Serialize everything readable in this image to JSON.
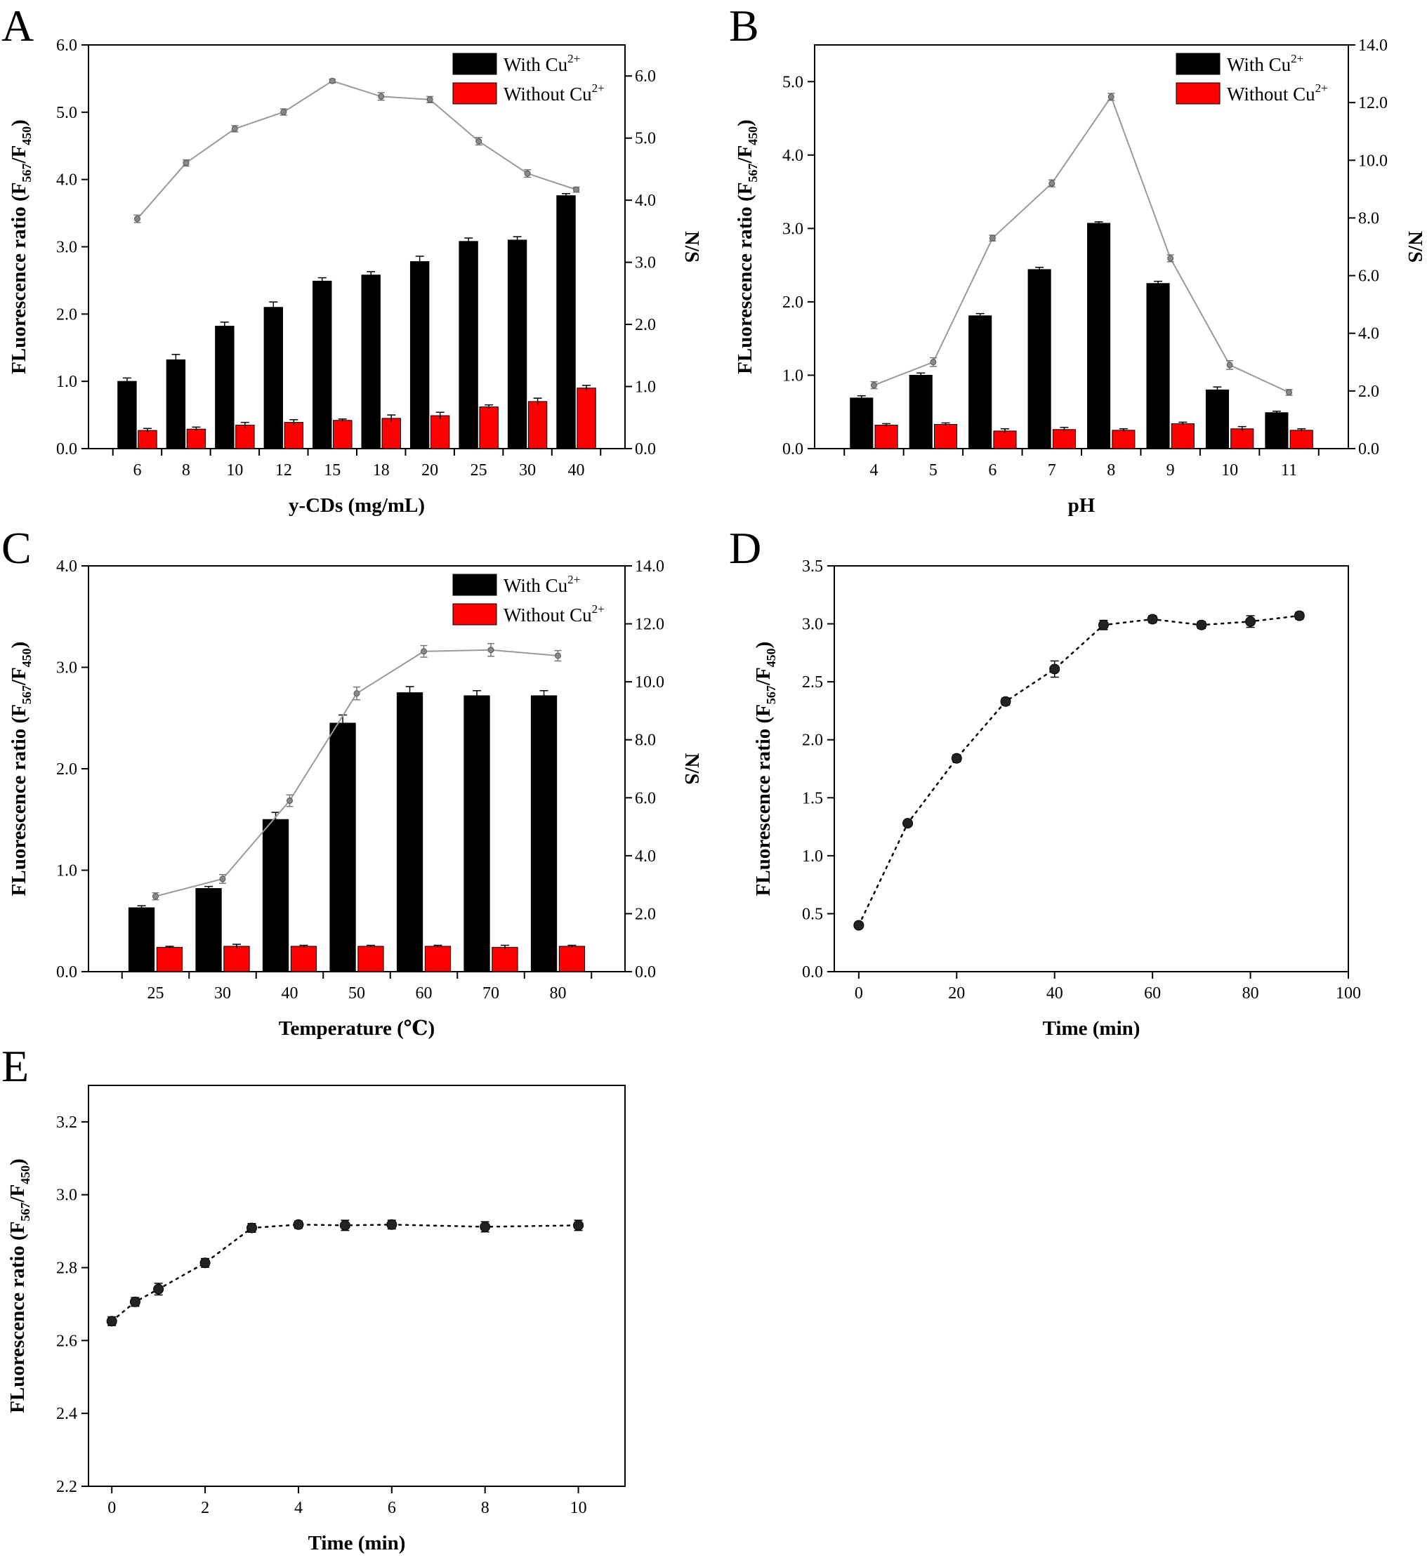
{
  "panels": [
    {
      "letter": "A",
      "chart_data": {
        "type": "bar",
        "categories": [
          "6",
          "8",
          "10",
          "12",
          "15",
          "18",
          "20",
          "25",
          "30",
          "40"
        ],
        "xlabel": "y-CDs (mg/mL)",
        "ylabel": "FLuorescence ratio (F567/F450)",
        "ylabel_parts": [
          "FLuorescence ratio (F",
          "567",
          "/F",
          "450",
          ")"
        ],
        "y2label": "N/S",
        "ylim": [
          0,
          6.0
        ],
        "yticks": [
          0.0,
          1.0,
          2.0,
          3.0,
          4.0,
          5.0,
          6.0
        ],
        "y2lim": [
          0,
          6.5
        ],
        "y2ticks": [
          0.0,
          1.0,
          2.0,
          3.0,
          4.0,
          5.0,
          6.0
        ],
        "series": [
          {
            "name": "With Cu2+",
            "label_base": "With Cu",
            "label_sup": "2+",
            "color": "#000000",
            "axis": "left",
            "values": [
              1.0,
              1.32,
              1.82,
              2.1,
              2.49,
              2.58,
              2.78,
              3.08,
              3.1,
              3.76
            ],
            "errors": [
              0.05,
              0.08,
              0.06,
              0.08,
              0.05,
              0.05,
              0.08,
              0.05,
              0.05,
              0.03
            ]
          },
          {
            "name": "Without Cu2+",
            "label_base": "Without Cu",
            "label_sup": "2+",
            "color": "#ff0000",
            "axis": "left",
            "values": [
              0.27,
              0.29,
              0.35,
              0.39,
              0.42,
              0.45,
              0.49,
              0.62,
              0.7,
              0.9
            ],
            "errors": [
              0.03,
              0.03,
              0.04,
              0.04,
              0.02,
              0.05,
              0.05,
              0.03,
              0.05,
              0.04
            ]
          },
          {
            "name": "N/S",
            "color": "#999999",
            "axis": "right",
            "type": "line",
            "values": [
              3.7,
              4.6,
              5.15,
              5.42,
              5.92,
              5.67,
              5.62,
              4.95,
              4.43,
              4.17
            ],
            "errors": [
              0.06,
              0.05,
              0.05,
              0.05,
              0.03,
              0.06,
              0.05,
              0.06,
              0.06,
              0.04
            ]
          }
        ],
        "legend": "top-right"
      }
    },
    {
      "letter": "B",
      "chart_data": {
        "type": "bar",
        "categories": [
          "4",
          "5",
          "6",
          "7",
          "8",
          "9",
          "10",
          "11"
        ],
        "xlabel": "pH",
        "ylabel": "FLuorescence ratio (F567/F450)",
        "ylabel_parts": [
          "FLuorescence ratio (F",
          "567",
          "/F",
          "450",
          ")"
        ],
        "y2label": "N/S",
        "ylim": [
          0,
          5.5
        ],
        "yticks": [
          0.0,
          1.0,
          2.0,
          3.0,
          4.0,
          5.0
        ],
        "y2lim": [
          0,
          14.0
        ],
        "y2ticks": [
          0.0,
          2.0,
          4.0,
          6.0,
          8.0,
          10.0,
          12.0,
          14.0
        ],
        "series": [
          {
            "name": "With Cu2+",
            "label_base": "With Cu",
            "label_sup": "2+",
            "color": "#000000",
            "axis": "left",
            "values": [
              0.69,
              1.0,
              1.81,
              2.44,
              3.07,
              2.25,
              0.8,
              0.49
            ],
            "errors": [
              0.03,
              0.03,
              0.03,
              0.03,
              0.02,
              0.03,
              0.04,
              0.02
            ]
          },
          {
            "name": "Without Cu2+",
            "label_base": "Without Cu",
            "label_sup": "2+",
            "color": "#ff0000",
            "axis": "left",
            "values": [
              0.32,
              0.33,
              0.24,
              0.26,
              0.25,
              0.34,
              0.27,
              0.25
            ],
            "errors": [
              0.02,
              0.02,
              0.03,
              0.03,
              0.02,
              0.02,
              0.03,
              0.02
            ]
          },
          {
            "name": "N/S",
            "color": "#999999",
            "axis": "right",
            "type": "line",
            "values": [
              2.2,
              3.0,
              7.3,
              9.2,
              12.2,
              6.6,
              2.9,
              1.95
            ],
            "errors": [
              0.12,
              0.15,
              0.1,
              0.12,
              0.12,
              0.12,
              0.15,
              0.1
            ]
          }
        ],
        "legend": "top-right"
      }
    },
    {
      "letter": "C",
      "chart_data": {
        "type": "bar",
        "categories": [
          "25",
          "30",
          "40",
          "50",
          "60",
          "70",
          "80"
        ],
        "xlabel": "Temperature (℃)",
        "ylabel": "FLuorescence ratio (F567/F450)",
        "ylabel_parts": [
          "FLuorescence ratio (F",
          "567",
          "/F",
          "450",
          ")"
        ],
        "y2label": "N/S",
        "ylim": [
          0,
          4.0
        ],
        "yticks": [
          0.0,
          1.0,
          2.0,
          3.0,
          4.0
        ],
        "y2lim": [
          0,
          14.0
        ],
        "y2ticks": [
          0.0,
          2.0,
          4.0,
          6.0,
          8.0,
          10.0,
          12.0,
          14.0
        ],
        "series": [
          {
            "name": "With Cu2+",
            "label_base": "With Cu",
            "label_sup": "2+",
            "color": "#000000",
            "axis": "left",
            "values": [
              0.63,
              0.82,
              1.5,
              2.45,
              2.75,
              2.72,
              2.72
            ],
            "errors": [
              0.02,
              0.02,
              0.07,
              0.08,
              0.06,
              0.05,
              0.05
            ]
          },
          {
            "name": "Without Cu2+",
            "label_base": "Without Cu",
            "label_sup": "2+",
            "color": "#ff0000",
            "axis": "left",
            "values": [
              0.24,
              0.25,
              0.25,
              0.25,
              0.25,
              0.24,
              0.25
            ],
            "errors": [
              0.01,
              0.02,
              0.01,
              0.01,
              0.01,
              0.02,
              0.01
            ]
          },
          {
            "name": "N/S",
            "color": "#999999",
            "axis": "right",
            "type": "line",
            "values": [
              2.6,
              3.2,
              5.9,
              9.6,
              11.05,
              11.1,
              10.9
            ],
            "errors": [
              0.12,
              0.15,
              0.2,
              0.22,
              0.2,
              0.22,
              0.18
            ]
          }
        ],
        "legend": "top-right"
      }
    },
    {
      "letter": "D",
      "chart_data": {
        "type": "scatter",
        "xlabel": "Time (min)",
        "ylabel": "FLuorescence ratio (F567/F450)",
        "ylabel_parts": [
          "FLuorescence ratio (F",
          "567",
          "/F",
          "450",
          ")"
        ],
        "xlim": [
          -5,
          100
        ],
        "xticks": [
          0,
          20,
          40,
          60,
          80,
          100
        ],
        "ylim": [
          0,
          3.5
        ],
        "yticks": [
          0.0,
          0.5,
          1.0,
          1.5,
          2.0,
          2.5,
          3.0,
          3.5
        ],
        "x": [
          0,
          10,
          20,
          30,
          40,
          50,
          60,
          70,
          80,
          90
        ],
        "y": [
          0.4,
          1.28,
          1.84,
          2.33,
          2.61,
          2.99,
          3.04,
          2.99,
          3.02,
          3.07
        ],
        "errors": [
          0.01,
          0.02,
          0.03,
          0.03,
          0.07,
          0.04,
          0.03,
          0.03,
          0.05,
          0.03
        ]
      }
    },
    {
      "letter": "E",
      "chart_data": {
        "type": "scatter",
        "xlabel": "Time (min)",
        "ylabel": "FLuorescence ratio (F567/F450)",
        "ylabel_parts": [
          "FLuorescence ratio (F",
          "567",
          "/F",
          "450",
          ")"
        ],
        "xlim": [
          -0.5,
          11
        ],
        "xticks": [
          0,
          2,
          4,
          6,
          8,
          10
        ],
        "ylim": [
          2.2,
          3.3
        ],
        "yticks": [
          2.2,
          2.4,
          2.6,
          2.8,
          3.0,
          3.2
        ],
        "x": [
          0,
          0.5,
          1,
          2,
          3,
          4,
          5,
          6,
          8,
          10
        ],
        "y": [
          2.653,
          2.706,
          2.741,
          2.813,
          2.909,
          2.918,
          2.916,
          2.918,
          2.912,
          2.916
        ],
        "errors": [
          0.012,
          0.012,
          0.016,
          0.012,
          0.012,
          0.01,
          0.014,
          0.012,
          0.014,
          0.014
        ]
      }
    }
  ]
}
